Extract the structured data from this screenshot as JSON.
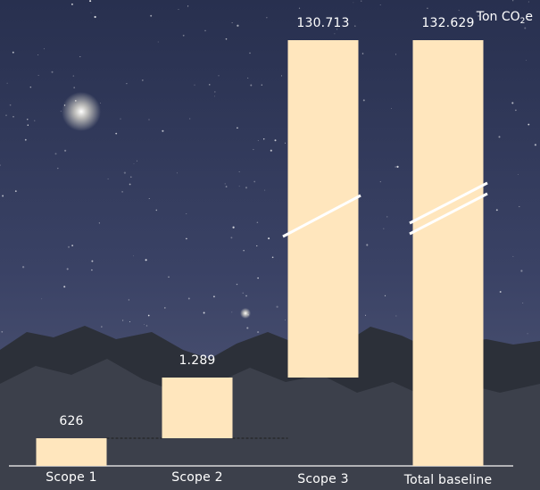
{
  "colors": {
    "bar": "#ffe6bd",
    "text": "#ffffff",
    "sky_top": "#2b3557",
    "sky_bottom": "#4a5275",
    "mountain": "#2a2d36"
  },
  "chart_data": {
    "type": "waterfall",
    "title": "",
    "unit_prefix": "Ton CO",
    "unit_sub": "2",
    "unit_suffix": "e",
    "categories": [
      "Scope 1",
      "Scope 2",
      "Scope 3",
      "Total baseline"
    ],
    "value_labels": [
      "626",
      "1.289",
      "130.713",
      "132.629"
    ],
    "values": [
      626,
      1289,
      130713,
      132629
    ],
    "axis_break": true
  }
}
